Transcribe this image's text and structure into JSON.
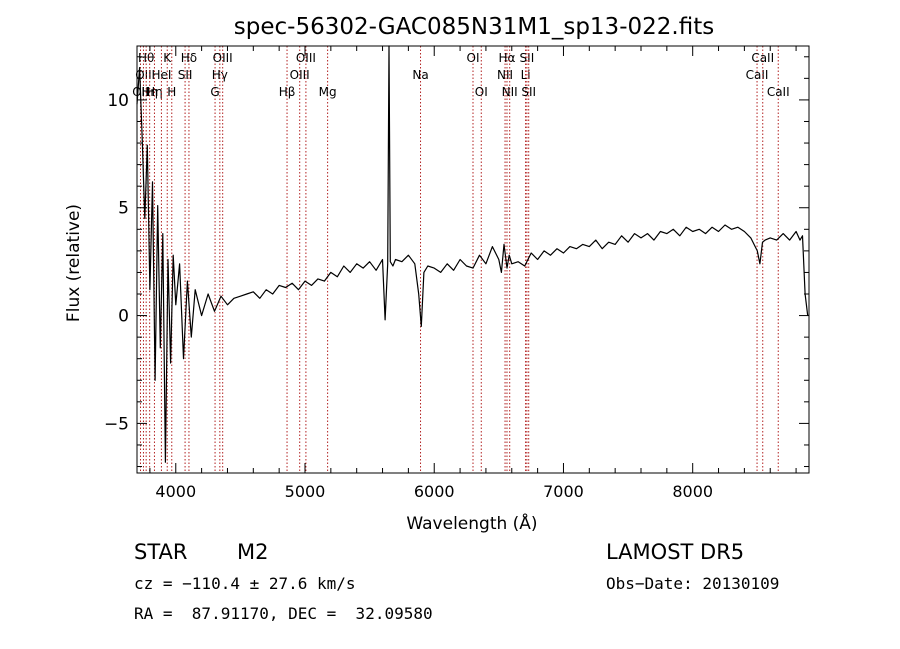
{
  "chart_data": {
    "type": "line",
    "title": "spec-56302-GAC085N31M1_sp13-022.fits",
    "xlabel": "Wavelength (Å)",
    "ylabel": "Flux (relative)",
    "xlim": [
      3700,
      8900
    ],
    "ylim": [
      -7.3,
      12.5
    ],
    "x_ticks": [
      4000,
      5000,
      6000,
      7000,
      8000
    ],
    "y_ticks": [
      10,
      5,
      0,
      -5
    ],
    "grid": false,
    "legend": "none",
    "line_color": "#000000",
    "marker_color": "#b22222",
    "series": [
      {
        "x": [
          3700,
          3720,
          3740,
          3760,
          3780,
          3800,
          3820,
          3840,
          3860,
          3880,
          3900,
          3920,
          3940,
          3960,
          3980,
          4000,
          4030,
          4060,
          4090,
          4120,
          4150,
          4200,
          4250,
          4300,
          4350,
          4400,
          4450,
          4500,
          4550,
          4600,
          4650,
          4700,
          4750,
          4800,
          4850,
          4900,
          4950,
          5000,
          5050,
          5100,
          5150,
          5200,
          5250,
          5300,
          5350,
          5400,
          5450,
          5500,
          5550,
          5600,
          5620,
          5640,
          5650,
          5660,
          5680,
          5700,
          5750,
          5800,
          5850,
          5880,
          5900,
          5920,
          5950,
          6000,
          6050,
          6100,
          6150,
          6200,
          6250,
          6300,
          6350,
          6400,
          6450,
          6500,
          6520,
          6540,
          6563,
          6580,
          6600,
          6650,
          6700,
          6750,
          6800,
          6850,
          6900,
          6950,
          7000,
          7050,
          7100,
          7150,
          7200,
          7250,
          7300,
          7350,
          7400,
          7450,
          7500,
          7550,
          7600,
          7650,
          7700,
          7750,
          7800,
          7850,
          7900,
          7950,
          8000,
          8050,
          8100,
          8150,
          8200,
          8250,
          8300,
          8350,
          8400,
          8450,
          8500,
          8520,
          8540,
          8560,
          8600,
          8650,
          8700,
          8750,
          8800,
          8830,
          8850,
          8870,
          8890
        ],
        "y": [
          9.8,
          11.5,
          8.2,
          4.5,
          7.9,
          1.2,
          6.2,
          -3.0,
          5.1,
          -1.5,
          3.8,
          -6.8,
          2.6,
          -2.2,
          2.8,
          0.5,
          2.4,
          -2.0,
          1.6,
          -1.0,
          1.2,
          0.0,
          1.0,
          0.2,
          0.9,
          0.5,
          0.8,
          0.9,
          1.0,
          1.1,
          0.8,
          1.2,
          1.0,
          1.4,
          1.3,
          1.5,
          1.2,
          1.6,
          1.4,
          1.7,
          1.6,
          2.0,
          1.8,
          2.3,
          2.0,
          2.4,
          2.2,
          2.5,
          2.1,
          2.6,
          -0.2,
          2.4,
          12.5,
          2.5,
          2.3,
          2.6,
          2.5,
          2.8,
          2.4,
          1.0,
          -0.5,
          2.0,
          2.3,
          2.2,
          2.0,
          2.4,
          2.1,
          2.6,
          2.3,
          2.2,
          2.8,
          2.4,
          3.2,
          2.6,
          2.0,
          3.3,
          2.2,
          2.8,
          2.4,
          2.5,
          2.3,
          2.9,
          2.6,
          3.0,
          2.8,
          3.1,
          2.9,
          3.2,
          3.1,
          3.3,
          3.2,
          3.5,
          3.1,
          3.4,
          3.3,
          3.7,
          3.4,
          3.8,
          3.6,
          3.8,
          3.5,
          3.9,
          3.8,
          4.0,
          3.7,
          4.1,
          3.9,
          4.0,
          3.8,
          4.1,
          3.9,
          4.2,
          4.0,
          4.1,
          3.9,
          3.6,
          3.0,
          2.4,
          3.4,
          3.5,
          3.6,
          3.5,
          3.8,
          3.5,
          3.9,
          3.5,
          3.7,
          1.0,
          0.0
        ]
      }
    ],
    "lines": [
      {
        "x": 3727,
        "label": "OII",
        "row": 3
      },
      {
        "x": 3750,
        "label": "OII",
        "row": 2
      },
      {
        "x": 3771,
        "label": "Hθ",
        "row": 1
      },
      {
        "x": 3798,
        "label": "Hη",
        "row": 3
      },
      {
        "x": 3835,
        "label": "Hη",
        "row": 3
      },
      {
        "x": 3889,
        "label": "HeI",
        "row": 2
      },
      {
        "x": 3934,
        "label": "K",
        "row": 1
      },
      {
        "x": 3969,
        "label": "H",
        "row": 3
      },
      {
        "x": 4072,
        "label": "SII",
        "row": 2
      },
      {
        "x": 4102,
        "label": "Hδ",
        "row": 1
      },
      {
        "x": 4304,
        "label": "G",
        "row": 3
      },
      {
        "x": 4341,
        "label": "Hγ",
        "row": 2
      },
      {
        "x": 4363,
        "label": "OIII",
        "row": 1
      },
      {
        "x": 4861,
        "label": "Hβ",
        "row": 3
      },
      {
        "x": 4959,
        "label": "OIII",
        "row": 2
      },
      {
        "x": 5007,
        "label": "OIII",
        "row": 1
      },
      {
        "x": 5175,
        "label": "Mg",
        "row": 3
      },
      {
        "x": 5894,
        "label": "Na",
        "row": 2
      },
      {
        "x": 6300,
        "label": "OI",
        "row": 1
      },
      {
        "x": 6364,
        "label": "OI",
        "row": 3
      },
      {
        "x": 6548,
        "label": "NII",
        "row": 2
      },
      {
        "x": 6563,
        "label": "Hα",
        "row": 1
      },
      {
        "x": 6584,
        "label": "NII",
        "row": 3
      },
      {
        "x": 6707,
        "label": "Li",
        "row": 2
      },
      {
        "x": 6717,
        "label": "SII",
        "row": 1
      },
      {
        "x": 6731,
        "label": "SII",
        "row": 3
      },
      {
        "x": 8498,
        "label": "CaII",
        "row": 2
      },
      {
        "x": 8542,
        "label": "CaII",
        "row": 1
      },
      {
        "x": 8662,
        "label": "CaII",
        "row": 3
      }
    ]
  },
  "info": {
    "object_class": "STAR",
    "subclass": "M2",
    "survey": "LAMOST DR5",
    "cz": "cz = −110.4 ± 27.6 km/s",
    "obs_date": "Obs−Date: 20130109",
    "coords": "RA =  87.91170, DEC =  32.09580"
  }
}
